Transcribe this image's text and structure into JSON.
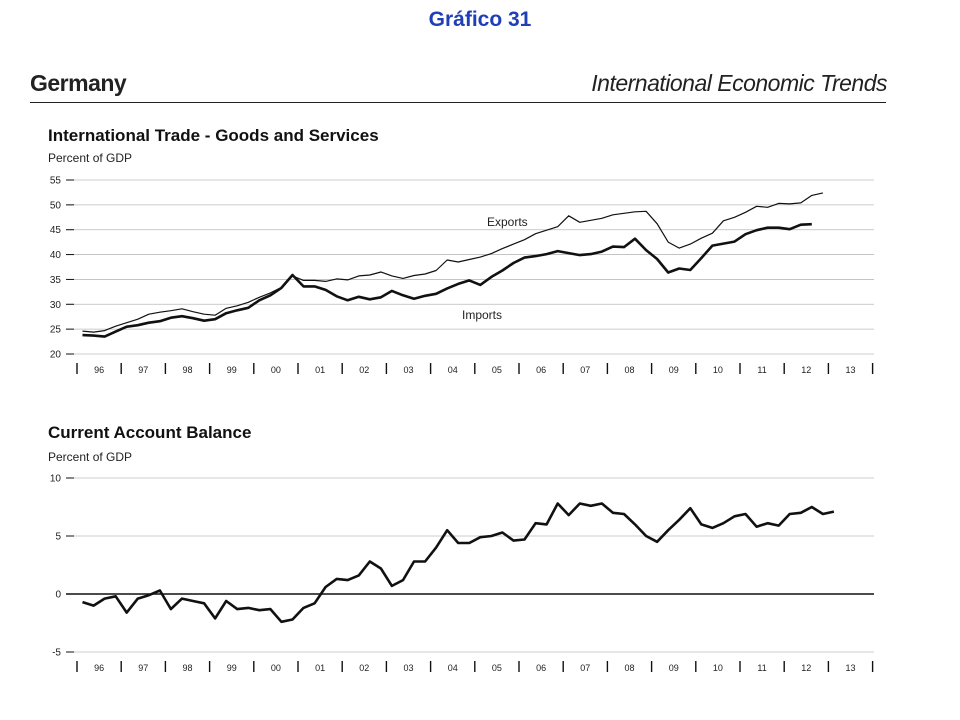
{
  "header": {
    "title": "Gráfico 31",
    "country": "Germany",
    "publication": "International Economic Trends"
  },
  "colors": {
    "title_blue": "#1f3fb8",
    "line": "#111111",
    "grid": "#bbbbbb"
  },
  "chart_data": [
    {
      "type": "line",
      "title": "International Trade - Goods and Services",
      "ylabel": "Percent of GDP",
      "xlabel": "",
      "ylim": [
        20,
        55
      ],
      "yticks": [
        20,
        25,
        30,
        35,
        40,
        45,
        50,
        55
      ],
      "grid": true,
      "x_tick_labels": [
        "96",
        "97",
        "98",
        "99",
        "00",
        "01",
        "02",
        "03",
        "04",
        "05",
        "06",
        "07",
        "08",
        "09",
        "10",
        "11",
        "12",
        "13"
      ],
      "x_start": "1996Q1",
      "frequency": "quarterly",
      "annotations": [
        "Exports",
        "Imports"
      ],
      "series": [
        {
          "name": "Exports",
          "values": [
            24.6,
            24.4,
            24.7,
            25.6,
            26.3,
            27.0,
            28.0,
            28.4,
            28.7,
            29.1,
            28.5,
            28.0,
            27.8,
            29.2,
            29.7,
            30.4,
            31.4,
            32.3,
            33.4,
            35.7,
            34.8,
            34.8,
            34.6,
            35.1,
            34.9,
            35.7,
            35.9,
            36.5,
            35.7,
            35.2,
            35.8,
            36.1,
            36.8,
            38.9,
            38.5,
            39.0,
            39.5,
            40.2,
            41.2,
            42.1,
            43.0,
            44.2,
            44.9,
            45.6,
            47.8,
            46.5,
            46.9,
            47.3,
            48.0,
            48.3,
            48.6,
            48.7,
            46.2,
            42.5,
            41.3,
            42.1,
            43.3,
            44.3,
            46.8,
            47.5,
            48.5,
            49.7,
            49.5,
            50.3,
            50.2,
            50.4,
            51.9,
            52.4
          ]
        },
        {
          "name": "Imports",
          "values": [
            23.8,
            23.7,
            23.5,
            24.5,
            25.5,
            25.8,
            26.3,
            26.6,
            27.3,
            27.6,
            27.2,
            26.7,
            27.0,
            28.2,
            28.8,
            29.3,
            30.8,
            31.8,
            33.3,
            35.9,
            33.6,
            33.6,
            32.9,
            31.6,
            30.8,
            31.5,
            31.0,
            31.4,
            32.7,
            31.8,
            31.1,
            31.7,
            32.1,
            33.2,
            34.1,
            34.8,
            33.9,
            35.5,
            36.8,
            38.3,
            39.4,
            39.7,
            40.1,
            40.7,
            40.3,
            39.9,
            40.1,
            40.6,
            41.6,
            41.5,
            43.2,
            40.9,
            39.1,
            36.4,
            37.2,
            36.9,
            39.3,
            41.8,
            42.2,
            42.6,
            44.1,
            44.9,
            45.4,
            45.4,
            45.1,
            46.0,
            46.1
          ]
        }
      ]
    },
    {
      "type": "line",
      "title": "Current Account Balance",
      "ylabel": "Percent of GDP",
      "xlabel": "",
      "ylim": [
        -5,
        10
      ],
      "yticks": [
        -5,
        0,
        5,
        10
      ],
      "grid": true,
      "x_tick_labels": [
        "96",
        "97",
        "98",
        "99",
        "00",
        "01",
        "02",
        "03",
        "04",
        "05",
        "06",
        "07",
        "08",
        "09",
        "10",
        "11",
        "12",
        "13"
      ],
      "x_start": "1996Q1",
      "frequency": "quarterly",
      "series": [
        {
          "name": "",
          "values": [
            -0.7,
            -1.0,
            -0.4,
            -0.2,
            -1.6,
            -0.4,
            -0.1,
            0.3,
            -1.3,
            -0.4,
            -0.6,
            -0.8,
            -2.1,
            -0.6,
            -1.3,
            -1.2,
            -1.4,
            -1.3,
            -2.4,
            -2.2,
            -1.2,
            -0.8,
            0.6,
            1.3,
            1.2,
            1.6,
            2.8,
            2.2,
            0.7,
            1.2,
            2.8,
            2.8,
            4.0,
            5.5,
            4.4,
            4.4,
            4.9,
            5.0,
            5.3,
            4.6,
            4.7,
            6.1,
            6.0,
            7.8,
            6.8,
            7.8,
            7.6,
            7.8,
            7.0,
            6.9,
            6.0,
            5.0,
            4.5,
            5.5,
            6.4,
            7.4,
            6.0,
            5.7,
            6.1,
            6.7,
            6.9,
            5.8,
            6.1,
            5.9,
            6.9,
            7.0,
            7.5,
            6.9,
            7.1
          ]
        }
      ]
    }
  ]
}
